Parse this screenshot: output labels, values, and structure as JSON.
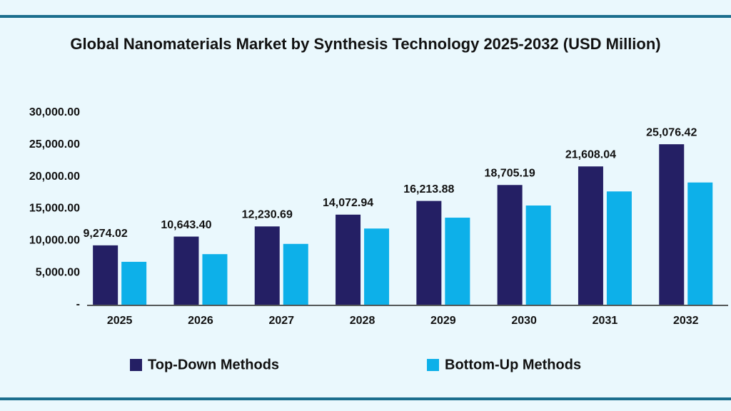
{
  "chart_data": {
    "type": "bar",
    "title": "Global Nanomaterials Market by Synthesis Technology 2025-2032 (USD Million)",
    "categories": [
      "2025",
      "2026",
      "2027",
      "2028",
      "2029",
      "2030",
      "2031",
      "2032"
    ],
    "series": [
      {
        "name": "Top-Down Methods",
        "color": "#241f64",
        "values": [
          9274.02,
          10643.4,
          12230.69,
          14072.94,
          16213.88,
          18705.19,
          21608.04,
          25076.42
        ],
        "value_labels": [
          "9,274.02",
          "10,643.40",
          "12,230.69",
          "14,072.94",
          "16,213.88",
          "18,705.19",
          "21,608.04",
          "25,076.42"
        ]
      },
      {
        "name": "Bottom-Up Methods",
        "color": "#0db0e9",
        "values": [
          6700,
          7900,
          9500,
          11900,
          13600,
          15500,
          17700,
          19100
        ]
      }
    ],
    "ylim": [
      0,
      30000
    ],
    "yticks": [
      {
        "value": 0,
        "label": "-"
      },
      {
        "value": 5000,
        "label": "5,000.00"
      },
      {
        "value": 10000,
        "label": "10,000.00"
      },
      {
        "value": 15000,
        "label": "15,000.00"
      },
      {
        "value": 20000,
        "label": "20,000.00"
      },
      {
        "value": 25000,
        "label": "25,000.00"
      },
      {
        "value": 30000,
        "label": "30,000.00"
      }
    ],
    "grid": false,
    "legend": "bottom"
  }
}
